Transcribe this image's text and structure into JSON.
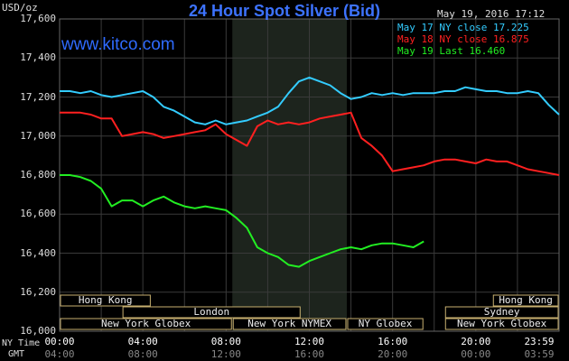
{
  "header": {
    "title": "24 Hour Spot Silver (Bid)",
    "unit": "USD/oz",
    "timestamp": "May 19, 2016 17:12",
    "brand": "www.kitco.com"
  },
  "legend": [
    {
      "text": "May 17 NY close 17.225",
      "color": "#33ccff"
    },
    {
      "text": "May 18 NY close 16.875",
      "color": "#ff2020"
    },
    {
      "text": "May 19 Last 16.460",
      "color": "#22ee22"
    }
  ],
  "row_labels": {
    "ny_time": "NY Time",
    "gmt": "GMT"
  },
  "sessions": [
    {
      "label": "Hong Kong",
      "row": 0,
      "start": 0,
      "end": 4.4
    },
    {
      "label": "Hong Kong",
      "row": 0,
      "start": 20.8,
      "end": 24
    },
    {
      "label": "London",
      "row": 1,
      "start": 3,
      "end": 11.6
    },
    {
      "label": "Sydney",
      "row": 1,
      "start": 18.5,
      "end": 24
    },
    {
      "label": "New York Globex",
      "row": 2,
      "start": 0,
      "end": 8.3
    },
    {
      "label": "New York NYMEX",
      "row": 2,
      "start": 8.3,
      "end": 13.8
    },
    {
      "label": "NY Globex",
      "row": 2,
      "start": 13.8,
      "end": 17.5
    },
    {
      "label": "New York Globex",
      "row": 2,
      "start": 18.5,
      "end": 24
    }
  ],
  "chart_data": {
    "type": "line",
    "title": "24 Hour Spot Silver (Bid)",
    "ylabel": "USD/oz",
    "ylim": [
      16.0,
      17.6
    ],
    "yticks": [
      "16,000",
      "16,200",
      "16,400",
      "16,600",
      "16,800",
      "17,000",
      "17,200",
      "17,400",
      "17,600"
    ],
    "xlim": [
      0,
      24
    ],
    "x_ticks_ny": [
      "00:00",
      "04:00",
      "08:00",
      "12:00",
      "16:00",
      "20:00",
      "23:59"
    ],
    "x_ticks_gmt": [
      "04:00",
      "08:00",
      "12:00",
      "16:00",
      "20:00",
      "00:00",
      "03:59"
    ],
    "shaded_hours": [
      8.3,
      13.8
    ],
    "grid": true,
    "series": [
      {
        "name": "May 17 NY close 17.225",
        "color": "#33ccff",
        "x": [
          0,
          0.5,
          1,
          1.5,
          2,
          2.5,
          3,
          3.5,
          4,
          4.5,
          5,
          5.5,
          6,
          6.5,
          7,
          7.5,
          8,
          8.5,
          9,
          9.5,
          10,
          10.5,
          11,
          11.5,
          12,
          12.5,
          13,
          13.5,
          14,
          14.5,
          15,
          15.5,
          16,
          16.5,
          17,
          17.5,
          18,
          18.5,
          19,
          19.5,
          20,
          20.5,
          21,
          21.5,
          22,
          22.5,
          23,
          23.5,
          24
        ],
        "values": [
          17.23,
          17.23,
          17.22,
          17.23,
          17.21,
          17.2,
          17.21,
          17.22,
          17.23,
          17.2,
          17.15,
          17.13,
          17.1,
          17.07,
          17.06,
          17.08,
          17.06,
          17.07,
          17.08,
          17.1,
          17.12,
          17.15,
          17.22,
          17.28,
          17.3,
          17.28,
          17.26,
          17.22,
          17.19,
          17.2,
          17.22,
          17.21,
          17.22,
          17.21,
          17.22,
          17.22,
          17.22,
          17.23,
          17.23,
          17.25,
          17.24,
          17.23,
          17.23,
          17.22,
          17.22,
          17.23,
          17.22,
          17.16,
          17.11
        ]
      },
      {
        "name": "May 18 NY close 16.875",
        "color": "#ff2020",
        "x": [
          0,
          0.5,
          1,
          1.5,
          2,
          2.5,
          3,
          3.5,
          4,
          4.5,
          5,
          5.5,
          6,
          6.5,
          7,
          7.5,
          8,
          8.5,
          9,
          9.5,
          10,
          10.5,
          11,
          11.5,
          12,
          12.5,
          13,
          13.5,
          14,
          14.5,
          15,
          15.5,
          16,
          16.5,
          17,
          17.5,
          18,
          18.5,
          19,
          19.5,
          20,
          20.5,
          21,
          21.5,
          22,
          22.5,
          23,
          23.5,
          24
        ],
        "values": [
          17.12,
          17.12,
          17.12,
          17.11,
          17.09,
          17.09,
          17.0,
          17.01,
          17.02,
          17.01,
          16.99,
          17.0,
          17.01,
          17.02,
          17.03,
          17.06,
          17.01,
          16.98,
          16.95,
          17.05,
          17.08,
          17.06,
          17.07,
          17.06,
          17.07,
          17.09,
          17.1,
          17.11,
          17.12,
          16.99,
          16.95,
          16.9,
          16.82,
          16.83,
          16.84,
          16.85,
          16.87,
          16.88,
          16.88,
          16.87,
          16.86,
          16.88,
          16.87,
          16.87,
          16.85,
          16.83,
          16.82,
          16.81,
          16.8
        ]
      },
      {
        "name": "May 19 Last 16.460",
        "color": "#22ee22",
        "x": [
          0,
          0.5,
          1,
          1.5,
          2,
          2.5,
          3,
          3.5,
          4,
          4.5,
          5,
          5.5,
          6,
          6.5,
          7,
          7.5,
          8,
          8.5,
          9,
          9.5,
          10,
          10.5,
          11,
          11.5,
          12,
          12.5,
          13,
          13.5,
          14,
          14.5,
          15,
          15.5,
          16,
          16.5,
          17,
          17.5
        ],
        "values": [
          16.8,
          16.8,
          16.79,
          16.77,
          16.73,
          16.64,
          16.67,
          16.67,
          16.64,
          16.67,
          16.69,
          16.66,
          16.64,
          16.63,
          16.64,
          16.63,
          16.62,
          16.58,
          16.53,
          16.43,
          16.4,
          16.38,
          16.34,
          16.33,
          16.36,
          16.38,
          16.4,
          16.42,
          16.43,
          16.42,
          16.44,
          16.45,
          16.45,
          16.44,
          16.43,
          16.46
        ]
      }
    ]
  }
}
